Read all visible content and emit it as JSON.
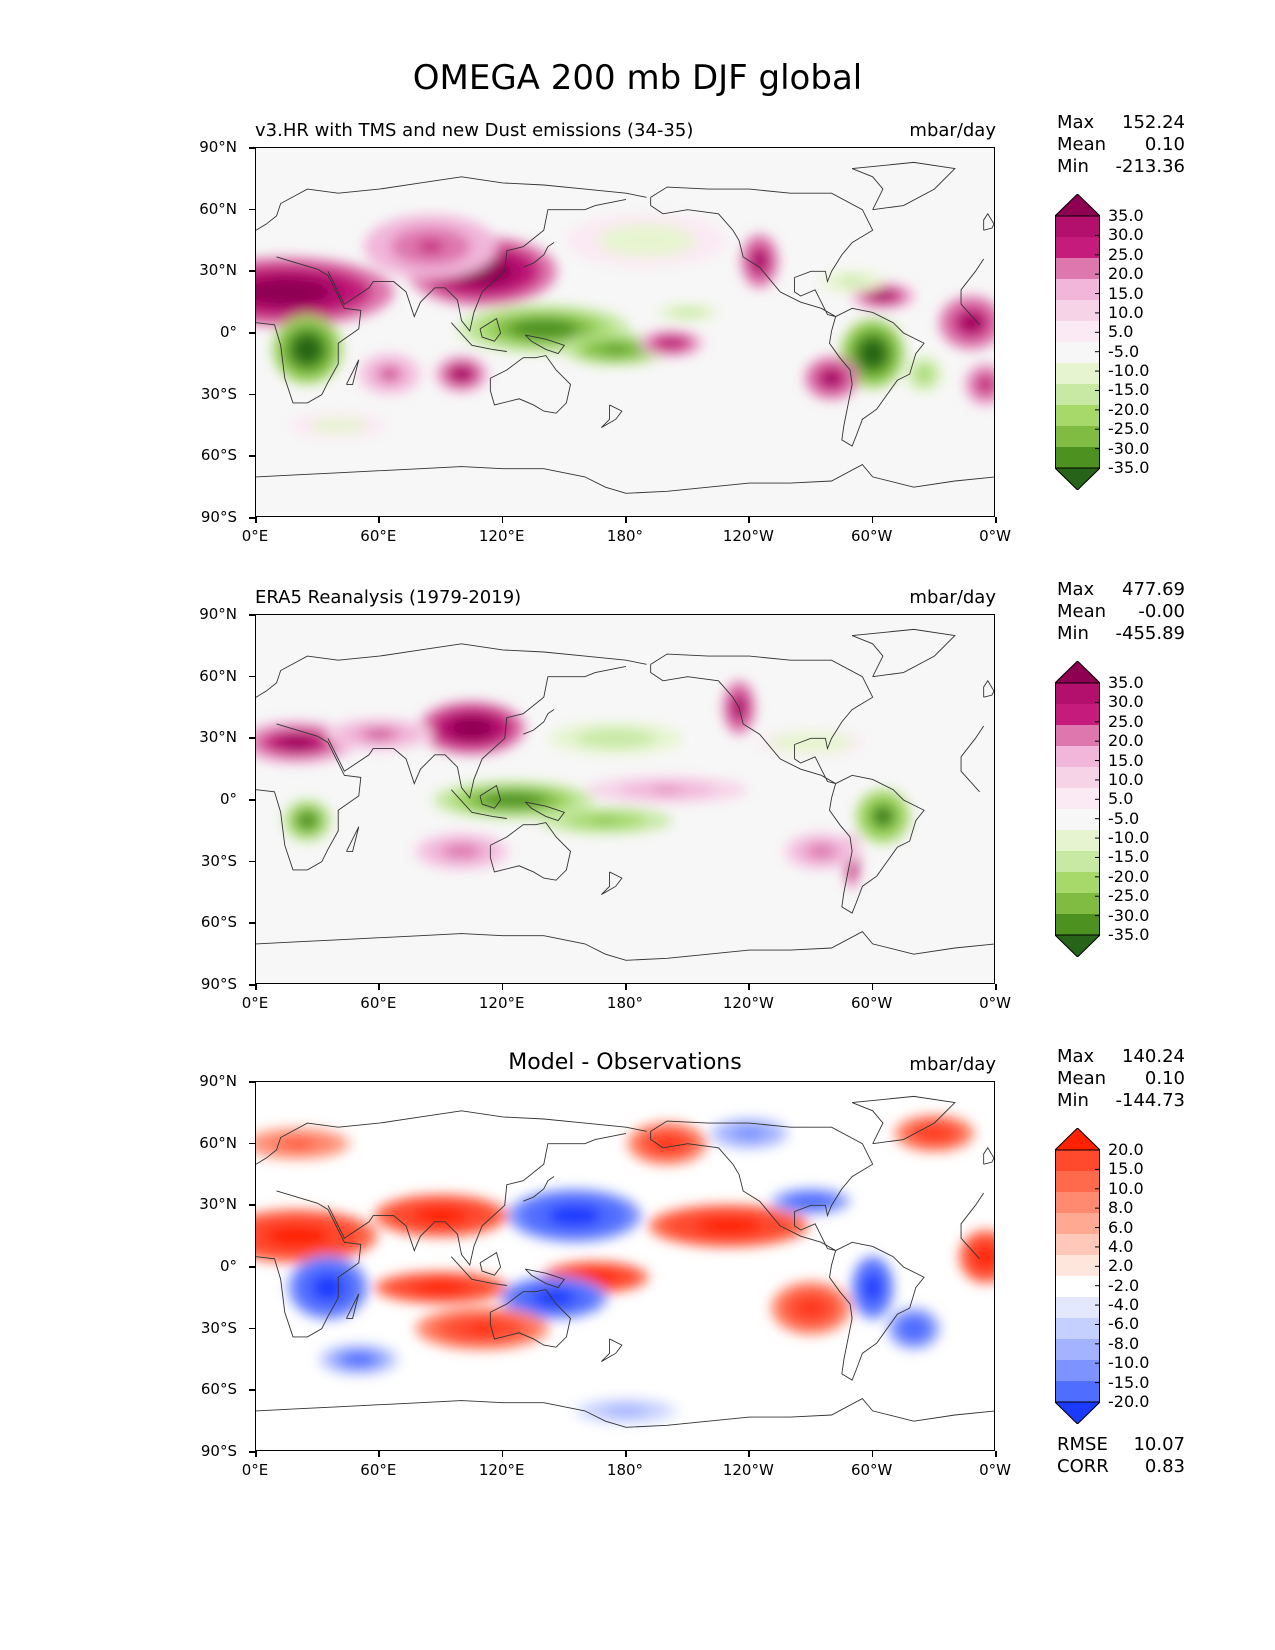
{
  "title": "OMEGA 200 mb DJF global",
  "panels": [
    {
      "subtitle": "v3.HR with TMS and new Dust emissions (34-35)",
      "units": "mbar/day",
      "stats": {
        "max_label": "Max",
        "max": "152.24",
        "mean_label": "Mean",
        "mean": "0.10",
        "min_label": "Min",
        "min": "-213.36"
      },
      "colormap": "PiYG_r",
      "levels": [
        "35.0",
        "30.0",
        "25.0",
        "20.0",
        "15.0",
        "10.0",
        "5.0",
        "-5.0",
        "-10.0",
        "-15.0",
        "-20.0",
        "-25.0",
        "-30.0",
        "-35.0"
      ]
    },
    {
      "subtitle": "ERA5 Reanalysis (1979-2019)",
      "units": "mbar/day",
      "stats": {
        "max_label": "Max",
        "max": "477.69",
        "mean_label": "Mean",
        "mean": "-0.00",
        "min_label": "Min",
        "min": "-455.89"
      },
      "colormap": "PiYG_r",
      "levels": [
        "35.0",
        "30.0",
        "25.0",
        "20.0",
        "15.0",
        "10.0",
        "5.0",
        "-5.0",
        "-10.0",
        "-15.0",
        "-20.0",
        "-25.0",
        "-30.0",
        "-35.0"
      ]
    },
    {
      "subtitle": "Model - Observations",
      "units": "mbar/day",
      "stats": {
        "max_label": "Max",
        "max": "140.24",
        "mean_label": "Mean",
        "mean": "0.10",
        "min_label": "Min",
        "min": "-144.73"
      },
      "colormap": "bwr",
      "levels": [
        "20.0",
        "15.0",
        "10.0",
        "8.0",
        "6.0",
        "4.0",
        "2.0",
        "-2.0",
        "-4.0",
        "-6.0",
        "-8.0",
        "-10.0",
        "-15.0",
        "-20.0"
      ],
      "metrics": {
        "rmse_label": "RMSE",
        "rmse": "10.07",
        "corr_label": "CORR",
        "corr": "0.83"
      }
    }
  ],
  "axes": {
    "lat_ticks": [
      "90°N",
      "60°N",
      "30°N",
      "0°",
      "30°S",
      "60°S",
      "90°S"
    ],
    "lon_ticks": [
      "0°E",
      "60°E",
      "120°E",
      "180°",
      "120°W",
      "60°W",
      "0°W"
    ]
  },
  "colors": {
    "pink": [
      "#8e0152",
      "#b3106e",
      "#c51b7d",
      "#de77ae",
      "#f1b6da",
      "#f7d3e8",
      "#fbe9f3",
      "#f7f7f7",
      "#e6f5d0",
      "#c7e9a4",
      "#a6d96a",
      "#7fbc41",
      "#4d9221",
      "#276419"
    ],
    "red": [
      "#ff2200",
      "#ff4a2d",
      "#ff6a4d",
      "#ff8a6f",
      "#ffa992",
      "#ffc8b8",
      "#ffe6dd",
      "#ffffff",
      "#e3e8ff",
      "#c6d0ff",
      "#a3b3ff",
      "#7d93ff",
      "#4f6dff",
      "#1a3aff"
    ]
  },
  "chart_data": [
    {
      "type": "heatmap",
      "title": "v3.HR with TMS and new Dust emissions (34-35)",
      "variable": "OMEGA 200 mb DJF",
      "units": "mbar/day",
      "x_range": [
        0,
        360
      ],
      "y_range": [
        -90,
        90
      ],
      "contour_levels": [
        -35,
        -30,
        -25,
        -20,
        -15,
        -10,
        -5,
        5,
        10,
        15,
        20,
        25,
        30,
        35
      ],
      "features": [
        {
          "lon": 15,
          "lat": 20,
          "value": 35,
          "sx": 40,
          "sy": 13
        },
        {
          "lon": 110,
          "lat": 30,
          "value": 35,
          "sx": 28,
          "sy": 13
        },
        {
          "lon": 85,
          "lat": 42,
          "value": 22,
          "sx": 25,
          "sy": 12
        },
        {
          "lon": 25,
          "lat": -8,
          "value": -35,
          "sx": 13,
          "sy": 13
        },
        {
          "lon": 140,
          "lat": 2,
          "value": -30,
          "sx": 32,
          "sy": 9
        },
        {
          "lon": 175,
          "lat": -8,
          "value": -28,
          "sx": 20,
          "sy": 6
        },
        {
          "lon": 300,
          "lat": -10,
          "value": -35,
          "sx": 12,
          "sy": 13
        },
        {
          "lon": 325,
          "lat": -20,
          "value": -20,
          "sx": 7,
          "sy": 7
        },
        {
          "lon": 280,
          "lat": -22,
          "value": 32,
          "sx": 10,
          "sy": 8
        },
        {
          "lon": 65,
          "lat": -20,
          "value": 20,
          "sx": 12,
          "sy": 8
        },
        {
          "lon": 100,
          "lat": -20,
          "value": 30,
          "sx": 10,
          "sy": 7
        },
        {
          "lon": 202,
          "lat": -5,
          "value": 28,
          "sx": 12,
          "sy": 5
        },
        {
          "lon": 348,
          "lat": 5,
          "value": 32,
          "sx": 12,
          "sy": 10
        },
        {
          "lon": 305,
          "lat": 18,
          "value": 30,
          "sx": 12,
          "sy": 5
        },
        {
          "lon": 245,
          "lat": 35,
          "value": 32,
          "sx": 7,
          "sy": 10
        },
        {
          "lon": 290,
          "lat": 25,
          "value": -12,
          "sx": 12,
          "sy": 4
        },
        {
          "lon": 210,
          "lat": 10,
          "value": -15,
          "sx": 12,
          "sy": 3
        },
        {
          "lon": 190,
          "lat": 45,
          "value": -8,
          "sx": 30,
          "sy": 10
        },
        {
          "lon": 355,
          "lat": -25,
          "value": 25,
          "sx": 8,
          "sy": 8
        },
        {
          "lon": 40,
          "lat": -45,
          "value": -8,
          "sx": 18,
          "sy": 5
        }
      ]
    },
    {
      "type": "heatmap",
      "title": "ERA5 Reanalysis (1979-2019)",
      "variable": "OMEGA 200 mb DJF",
      "units": "mbar/day",
      "x_range": [
        0,
        360
      ],
      "y_range": [
        -90,
        90
      ],
      "contour_levels": [
        -35,
        -30,
        -25,
        -20,
        -15,
        -10,
        -5,
        5,
        10,
        15,
        20,
        25,
        30,
        35
      ],
      "features": [
        {
          "lon": 105,
          "lat": 35,
          "value": 35,
          "sx": 20,
          "sy": 10
        },
        {
          "lon": 20,
          "lat": 28,
          "value": 30,
          "sx": 22,
          "sy": 8
        },
        {
          "lon": 60,
          "lat": 32,
          "value": 20,
          "sx": 20,
          "sy": 6
        },
        {
          "lon": 125,
          "lat": 0,
          "value": -30,
          "sx": 30,
          "sy": 7
        },
        {
          "lon": 170,
          "lat": -10,
          "value": -22,
          "sx": 25,
          "sy": 5
        },
        {
          "lon": 25,
          "lat": -10,
          "value": -30,
          "sx": 9,
          "sy": 8
        },
        {
          "lon": 305,
          "lat": -8,
          "value": -32,
          "sx": 10,
          "sy": 10
        },
        {
          "lon": 235,
          "lat": 45,
          "value": 32,
          "sx": 6,
          "sy": 10
        },
        {
          "lon": 290,
          "lat": -30,
          "value": 32,
          "sx": 3,
          "sy": 10
        },
        {
          "lon": 175,
          "lat": 30,
          "value": -15,
          "sx": 25,
          "sy": 6
        },
        {
          "lon": 270,
          "lat": 28,
          "value": -10,
          "sx": 20,
          "sy": 5
        },
        {
          "lon": 275,
          "lat": -25,
          "value": 18,
          "sx": 14,
          "sy": 7
        },
        {
          "lon": 200,
          "lat": 5,
          "value": 15,
          "sx": 30,
          "sy": 5
        },
        {
          "lon": 100,
          "lat": -25,
          "value": 18,
          "sx": 18,
          "sy": 7
        }
      ]
    },
    {
      "type": "heatmap",
      "title": "Model - Observations",
      "variable": "OMEGA 200 mb DJF difference",
      "units": "mbar/day",
      "x_range": [
        0,
        360
      ],
      "y_range": [
        -90,
        90
      ],
      "contour_levels": [
        -20,
        -15,
        -10,
        -8,
        -6,
        -4,
        -2,
        2,
        4,
        6,
        8,
        10,
        15,
        20
      ],
      "features": [
        {
          "lon": 20,
          "lat": 15,
          "value": 20,
          "sx": 30,
          "sy": 10
        },
        {
          "lon": 90,
          "lat": 25,
          "value": 18,
          "sx": 25,
          "sy": 8
        },
        {
          "lon": 35,
          "lat": -10,
          "value": -20,
          "sx": 15,
          "sy": 12
        },
        {
          "lon": 155,
          "lat": 25,
          "value": -20,
          "sx": 25,
          "sy": 10
        },
        {
          "lon": 230,
          "lat": 20,
          "value": 18,
          "sx": 30,
          "sy": 8
        },
        {
          "lon": 90,
          "lat": -10,
          "value": 20,
          "sx": 25,
          "sy": 6
        },
        {
          "lon": 165,
          "lat": -5,
          "value": 20,
          "sx": 20,
          "sy": 6
        },
        {
          "lon": 145,
          "lat": -15,
          "value": -20,
          "sx": 20,
          "sy": 8
        },
        {
          "lon": 110,
          "lat": -30,
          "value": 15,
          "sx": 25,
          "sy": 8
        },
        {
          "lon": 50,
          "lat": -45,
          "value": -12,
          "sx": 15,
          "sy": 6
        },
        {
          "lon": 300,
          "lat": -10,
          "value": -20,
          "sx": 8,
          "sy": 12
        },
        {
          "lon": 270,
          "lat": -20,
          "value": 15,
          "sx": 15,
          "sy": 10
        },
        {
          "lon": 320,
          "lat": -30,
          "value": -15,
          "sx": 10,
          "sy": 8
        },
        {
          "lon": 355,
          "lat": 5,
          "value": 20,
          "sx": 10,
          "sy": 10
        },
        {
          "lon": 200,
          "lat": 60,
          "value": 15,
          "sx": 15,
          "sy": 8
        },
        {
          "lon": 240,
          "lat": 65,
          "value": -10,
          "sx": 15,
          "sy": 6
        },
        {
          "lon": 330,
          "lat": 65,
          "value": 15,
          "sx": 15,
          "sy": 7
        },
        {
          "lon": 270,
          "lat": 32,
          "value": -15,
          "sx": 15,
          "sy": 5
        },
        {
          "lon": 20,
          "lat": 60,
          "value": 10,
          "sx": 20,
          "sy": 6
        },
        {
          "lon": 180,
          "lat": -70,
          "value": -8,
          "sx": 20,
          "sy": 5
        }
      ]
    }
  ]
}
